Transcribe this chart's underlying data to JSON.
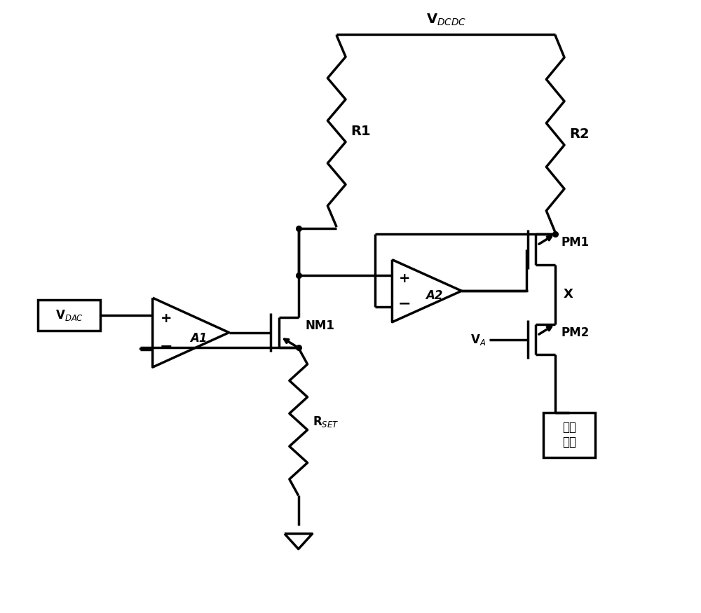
{
  "bg_color": "#ffffff",
  "line_color": "#000000",
  "lw": 2.5,
  "lw_thin": 1.8,
  "fig_w": 10.0,
  "fig_h": 8.75,
  "xlim": [
    0,
    10
  ],
  "ylim": [
    0,
    8.75
  ],
  "vdcdc_label": "V$_{DCDC}$",
  "vdac_label": "V$_{DAC}$",
  "r1_label": "R1",
  "r2_label": "R2",
  "rset_label": "R$_{SET}$",
  "a1_label": "A1",
  "a2_label": "A2",
  "nm1_label": "NM1",
  "pm1_label": "PM1",
  "pm2_label": "PM2",
  "x_label": "X",
  "va_label": "V$_A$",
  "load_label": "阻性\n负载"
}
